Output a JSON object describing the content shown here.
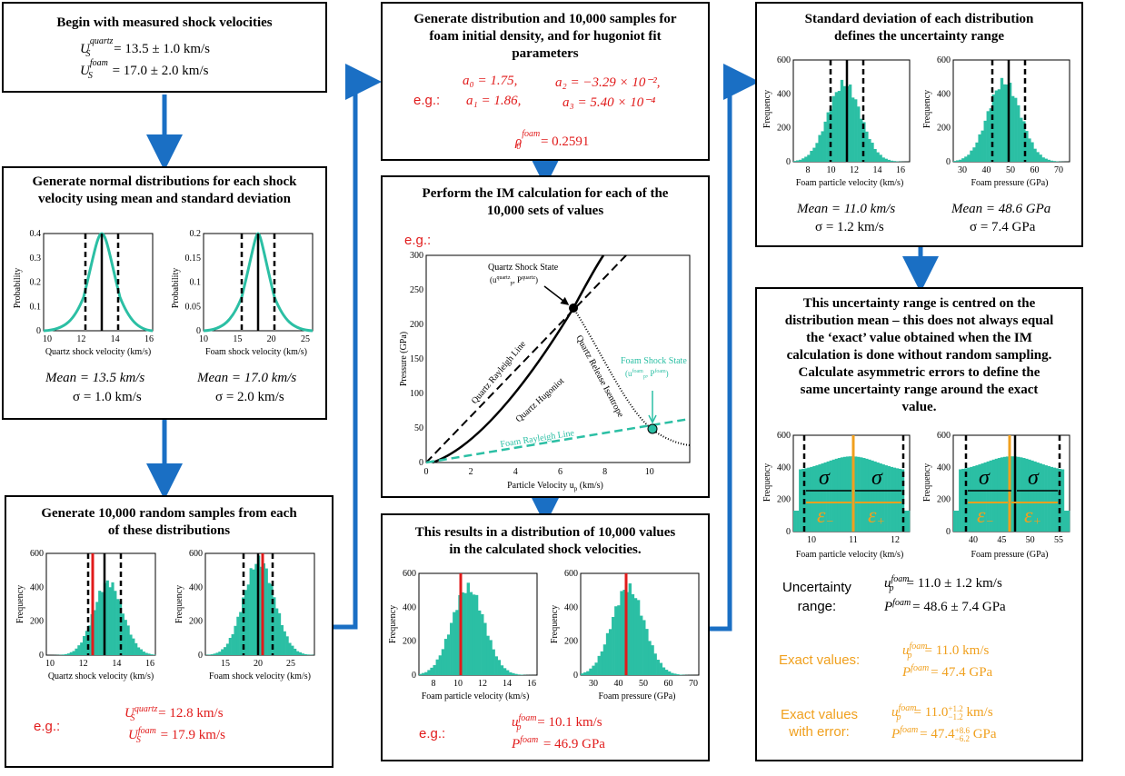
{
  "box1": {
    "title": "Begin with measured shock velocities",
    "line1_sym": "U",
    "line1_sup": "quartz",
    "line1_sub": "S",
    "line1_val": "= 13.5  ± 1.0 km/s",
    "line2_sym": "U",
    "line2_sup": "foam",
    "line2_sub": "S",
    "line2_val": "= 17.0  ± 2.0 km/s"
  },
  "box2": {
    "title_1": "Generate normal distributions for each shock",
    "title_2": "velocity using mean and standard deviation",
    "left_mean": "Mean = 13.5 km/s",
    "left_sigma": "σ = 1.0 km/s",
    "right_mean": "Mean = 17.0 km/s",
    "right_sigma": "σ = 2.0 km/s"
  },
  "box3": {
    "title_1": "Generate 10,000 random samples from each",
    "title_2": "of these distributions",
    "eg": "e.g.:",
    "line1_val": "= 12.8 km/s",
    "line1_sup": "quartz",
    "line2_val": "= 17.9 km/s",
    "line2_sup": "foam"
  },
  "box4": {
    "title_1": "Generate distribution and 10,000 samples for",
    "title_2": "foam initial density, and for hugoniot fit",
    "title_3": "parameters",
    "eg": "e.g.:",
    "a0": "a₀ = 1.75,",
    "a1": "a₁ = 1.86,",
    "a2": "a₂ = −3.29 × 10⁻²,",
    "a3": "a₃ = 5.40 × 10⁻⁴",
    "rho": "= 0.2591",
    "rho_sup": "foam"
  },
  "box5": {
    "title_1": "Perform the IM calculation for each of the",
    "title_2": "10,000 sets of values",
    "eg": "e.g.:"
  },
  "im_chart": {
    "xlabel": "Particle Velocity u",
    "xlabel_sub": "p",
    "xlabel_unit": " (km/s)",
    "ylabel": "Pressure (GPa)",
    "xticks": [
      "0",
      "2",
      "4",
      "6",
      "8",
      "10"
    ],
    "yticks": [
      "0",
      "50",
      "100",
      "150",
      "200",
      "250",
      "300"
    ],
    "label_quartz_state": "Quartz Shock State",
    "label_quartz_state_coords": "(uₚ^quartz, P^quartz)",
    "label_foam_state": "Foam Shock State",
    "label_foam_state_coords": "(uₚ^foam, P^foam)",
    "label_qrl": "Quartz Rayleigh Line",
    "label_qh": "Quartz Hugoniot",
    "label_qri": "Quartz Release Isentrope",
    "label_frl": "Foam Rayleigh Line",
    "color_accent": "#2bbfa4"
  },
  "box6": {
    "title_1": "This results in a distribution of 10,000 values",
    "title_2": "in the calculated shock velocities.",
    "eg": "e.g.:",
    "line1_val": "= 10.1 km/s",
    "line2_val": "= 46.9 GPa"
  },
  "box7": {
    "title_1": "Standard deviation of each distribution",
    "title_2": "defines the uncertainty range",
    "left_mean": "Mean = 11.0 km/s",
    "left_sigma": "σ = 1.2 km/s",
    "right_mean": "Mean = 48.6 GPa",
    "right_sigma": "σ = 7.4 GPa"
  },
  "box8": {
    "title_1": "This uncertainty range is centred on the",
    "title_2": "distribution mean – this does not always equal",
    "title_3": "the ‘exact’ value obtained when the IM",
    "title_4": "calculation is done without random sampling.",
    "title_5": "Calculate asymmetric errors to define the",
    "title_6": "same uncertainty range around the exact",
    "title_7": "value.",
    "unc_label_1": "Uncertainty",
    "unc_label_2": "range:",
    "unc_line1": "= 11.0  ± 1.2 km/s",
    "unc_line2": "= 48.6  ± 7.4 GPa",
    "exact_label": "Exact values:",
    "exact_line1": "=  11.0 km/s",
    "exact_line2": "=  47.4 GPa",
    "exacterr_label_1": "Exact values",
    "exacterr_label_2": "with error:",
    "exacterr_line1_val": "= 11.0",
    "exacterr_line1_err_p": "+1.2",
    "exacterr_line1_err_m": "−1.2",
    "exacterr_line1_unit": " km/s",
    "exacterr_line2_val": "= 47.4",
    "exacterr_line2_err_p": "+8.6",
    "exacterr_line2_err_m": "−6.2",
    "exacterr_line2_unit": " GPa",
    "sigma": "σ",
    "eps_minus": "ε",
    "eps_plus": "ε"
  },
  "plots": {
    "probability": "Probability",
    "frequency": "Frequency",
    "quartz_xlabel": "Quartz shock velocity (km/s)",
    "foam_xlabel": "Foam shock velocity (km/s)",
    "fpv_xlabel": "Foam particle velocity (km/s)",
    "fp_xlabel": "Foam pressure (GPa)",
    "prob_yticks": [
      "0",
      "0.1",
      "0.2",
      "0.3",
      "0.4"
    ],
    "prob_yticks2": [
      "0",
      "0.05",
      "0.1",
      "0.15",
      "0.2"
    ],
    "freq_yticks": [
      "0",
      "200",
      "400",
      "600"
    ],
    "b2_q_xticks": [
      "10",
      "12",
      "14",
      "16"
    ],
    "b2_f_xticks": [
      "10",
      "15",
      "20",
      "25"
    ],
    "b3_q_xticks": [
      "10",
      "12",
      "14",
      "16"
    ],
    "b3_f_xticks": [
      "15",
      "20",
      "25"
    ],
    "b6_up_xticks": [
      "8",
      "10",
      "12",
      "14",
      "16"
    ],
    "b6_p_xticks": [
      "30",
      "40",
      "50",
      "60",
      "70"
    ],
    "b8_up_xticks": [
      "10",
      "11",
      "12"
    ],
    "b8_p_xticks": [
      "40",
      "45",
      "50",
      "55"
    ]
  },
  "colors": {
    "teal": "#2bbfa4",
    "red": "#e11b1b",
    "orange": "#f0a01e",
    "arrow_blue": "#1a6fc4"
  }
}
